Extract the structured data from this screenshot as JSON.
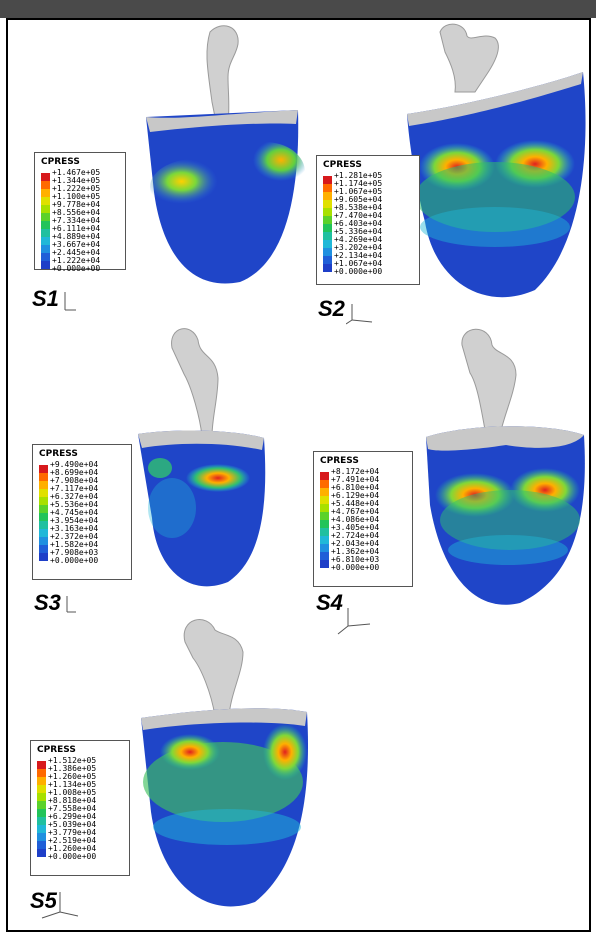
{
  "legend_title": "CPRESS",
  "colors": [
    "#d7191c",
    "#ff6a00",
    "#ffb000",
    "#e0e000",
    "#a8e000",
    "#5bd22a",
    "#22c45a",
    "#20c0a0",
    "#20b8d8",
    "#1f90e0",
    "#1f5fd8",
    "#1e3fc8",
    "#1a2aa8"
  ],
  "panels": [
    {
      "label": "S1",
      "values": [
        "+1.467e+05",
        "+1.344e+05",
        "+1.222e+05",
        "+1.100e+05",
        "+9.778e+04",
        "+8.556e+04",
        "+7.334e+04",
        "+6.111e+04",
        "+4.889e+04",
        "+3.667e+04",
        "+2.445e+04",
        "+1.222e+04",
        "+0.000e+00"
      ]
    },
    {
      "label": "S2",
      "values": [
        "+1.281e+05",
        "+1.174e+05",
        "+1.067e+05",
        "+9.605e+04",
        "+8.538e+04",
        "+7.470e+04",
        "+6.403e+04",
        "+5.336e+04",
        "+4.269e+04",
        "+3.202e+04",
        "+2.134e+04",
        "+1.067e+04",
        "+0.000e+00"
      ]
    },
    {
      "label": "S3",
      "values": [
        "+9.490e+04",
        "+8.699e+04",
        "+7.908e+04",
        "+7.117e+04",
        "+6.327e+04",
        "+5.536e+04",
        "+4.745e+04",
        "+3.954e+04",
        "+3.163e+04",
        "+2.372e+04",
        "+1.582e+04",
        "+7.908e+03",
        "+0.000e+00"
      ]
    },
    {
      "label": "S4",
      "values": [
        "+8.172e+04",
        "+7.491e+04",
        "+6.810e+04",
        "+6.129e+04",
        "+5.448e+04",
        "+4.767e+04",
        "+4.086e+04",
        "+3.405e+04",
        "+2.724e+04",
        "+2.043e+04",
        "+1.362e+04",
        "+6.810e+03",
        "+0.000e+00"
      ]
    },
    {
      "label": "S5",
      "values": [
        "+1.512e+05",
        "+1.386e+05",
        "+1.260e+05",
        "+1.134e+05",
        "+1.008e+05",
        "+8.818e+04",
        "+7.558e+04",
        "+6.299e+04",
        "+5.039e+04",
        "+3.779e+04",
        "+2.519e+04",
        "+1.260e+04",
        "+0.000e+00"
      ]
    }
  ]
}
